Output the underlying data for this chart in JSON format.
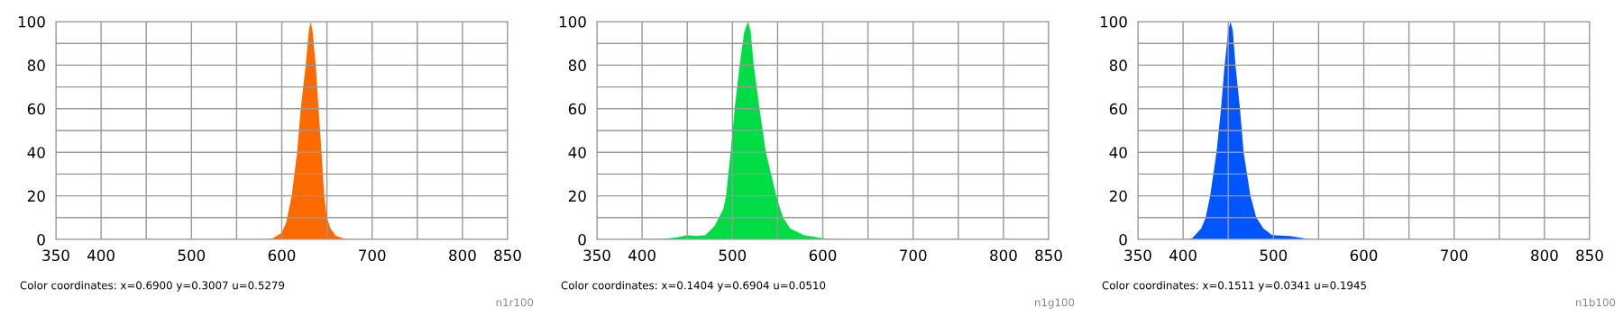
{
  "chart_data": [
    {
      "type": "area",
      "color": "#ff6a00",
      "x": [
        380,
        500,
        580,
        590,
        600,
        605,
        611,
        617,
        621,
        626.5,
        630,
        632,
        634,
        637.6,
        640.7,
        644,
        647,
        650,
        654,
        660,
        670,
        680,
        780
      ],
      "values": [
        0,
        0,
        0,
        0.5,
        3,
        8,
        20,
        40,
        60,
        80,
        96,
        100,
        96,
        80,
        60,
        40,
        20,
        10,
        5,
        1.5,
        0.3,
        0,
        0
      ],
      "xlim": [
        350,
        850
      ],
      "ylim": [
        0,
        100
      ],
      "xticks": [
        350,
        400,
        {
          "value": 450,
          "label": null
        },
        500,
        {
          "value": 550,
          "label": null
        },
        600,
        {
          "value": 650,
          "label": null
        },
        700,
        {
          "value": 750,
          "label": null
        },
        800,
        850
      ],
      "yticks": [
        0,
        {
          "value": 10,
          "label": null
        },
        20,
        {
          "value": 30,
          "label": null
        },
        40,
        {
          "value": 50,
          "label": null
        },
        60,
        {
          "value": 70,
          "label": null
        },
        80,
        {
          "value": 90,
          "label": null
        },
        100
      ],
      "grid": true,
      "annotations": [
        "Color coordinates: x=0.6900 y=0.3007 u=0.5279",
        "n1r100"
      ]
    },
    {
      "type": "area",
      "color": "#00dd44",
      "x": [
        380,
        420,
        430,
        440,
        450,
        460,
        470,
        480,
        490,
        493,
        498,
        502.5,
        508,
        513,
        517,
        520,
        523.6,
        530,
        537,
        548.5,
        556,
        564,
        579,
        600,
        620,
        780
      ],
      "values": [
        0,
        0.3,
        0.5,
        1,
        2,
        1.5,
        2,
        6,
        14,
        20,
        40,
        60,
        80,
        95,
        100,
        96,
        80,
        60,
        40,
        20,
        10,
        5,
        2,
        0.5,
        0,
        0
      ],
      "xlim": [
        350,
        850
      ],
      "ylim": [
        0,
        100
      ],
      "xticks": [
        350,
        400,
        {
          "value": 450,
          "label": null
        },
        500,
        {
          "value": 550,
          "label": null
        },
        600,
        {
          "value": 650,
          "label": null
        },
        700,
        {
          "value": 750,
          "label": null
        },
        800,
        850
      ],
      "yticks": [
        0,
        {
          "value": 10,
          "label": null
        },
        20,
        {
          "value": 30,
          "label": null
        },
        40,
        {
          "value": 50,
          "label": null
        },
        60,
        {
          "value": 70,
          "label": null
        },
        80,
        {
          "value": 90,
          "label": null
        },
        100
      ],
      "grid": true,
      "annotations": [
        "Color coordinates: x=0.1404 y=0.6904 u=0.0510",
        "n1g100"
      ]
    },
    {
      "type": "area",
      "color": "#0055ff",
      "x": [
        380,
        400,
        410,
        420,
        425,
        430,
        437,
        442,
        446,
        450,
        452.5,
        455,
        458,
        463,
        467,
        474.5,
        481,
        489,
        498.6,
        518,
        537,
        548,
        780
      ],
      "values": [
        0,
        0,
        0.5,
        5,
        10,
        20,
        40,
        60,
        80,
        96,
        100,
        96,
        80,
        60,
        40,
        20,
        10,
        5,
        2,
        1.5,
        0.3,
        0,
        0
      ],
      "xlim": [
        350,
        850
      ],
      "ylim": [
        0,
        100
      ],
      "xticks": [
        350,
        400,
        {
          "value": 450,
          "label": null
        },
        500,
        {
          "value": 550,
          "label": null
        },
        600,
        {
          "value": 650,
          "label": null
        },
        700,
        {
          "value": 750,
          "label": null
        },
        800,
        850
      ],
      "yticks": [
        0,
        {
          "value": 10,
          "label": null
        },
        20,
        {
          "value": 30,
          "label": null
        },
        40,
        {
          "value": 50,
          "label": null
        },
        60,
        {
          "value": 70,
          "label": null
        },
        80,
        {
          "value": 90,
          "label": null
        },
        100
      ],
      "grid": true,
      "annotations": [
        "Color coordinates: x=0.1511 y=0.0341 u=0.1945",
        "n1b100"
      ]
    }
  ]
}
